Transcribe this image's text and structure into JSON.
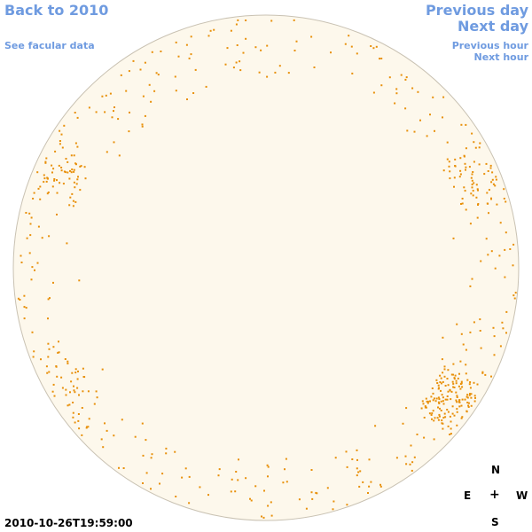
{
  "nav": {
    "back": "Back to 2010",
    "facular": "See facular data",
    "prev_day": "Previous day",
    "next_day": "Next day",
    "prev_hour": "Previous hour",
    "next_hour": "Next hour"
  },
  "compass": {
    "north": "N",
    "east": "E",
    "center": "+",
    "west": "W",
    "south": "S"
  },
  "timestamp": "2010-10-26T19:59:00",
  "colors": {
    "link": "#6f9be0",
    "disk_fill": "#fdf8ec",
    "disk_edge": "#c9c2b3",
    "facula": "#e8900a"
  }
}
